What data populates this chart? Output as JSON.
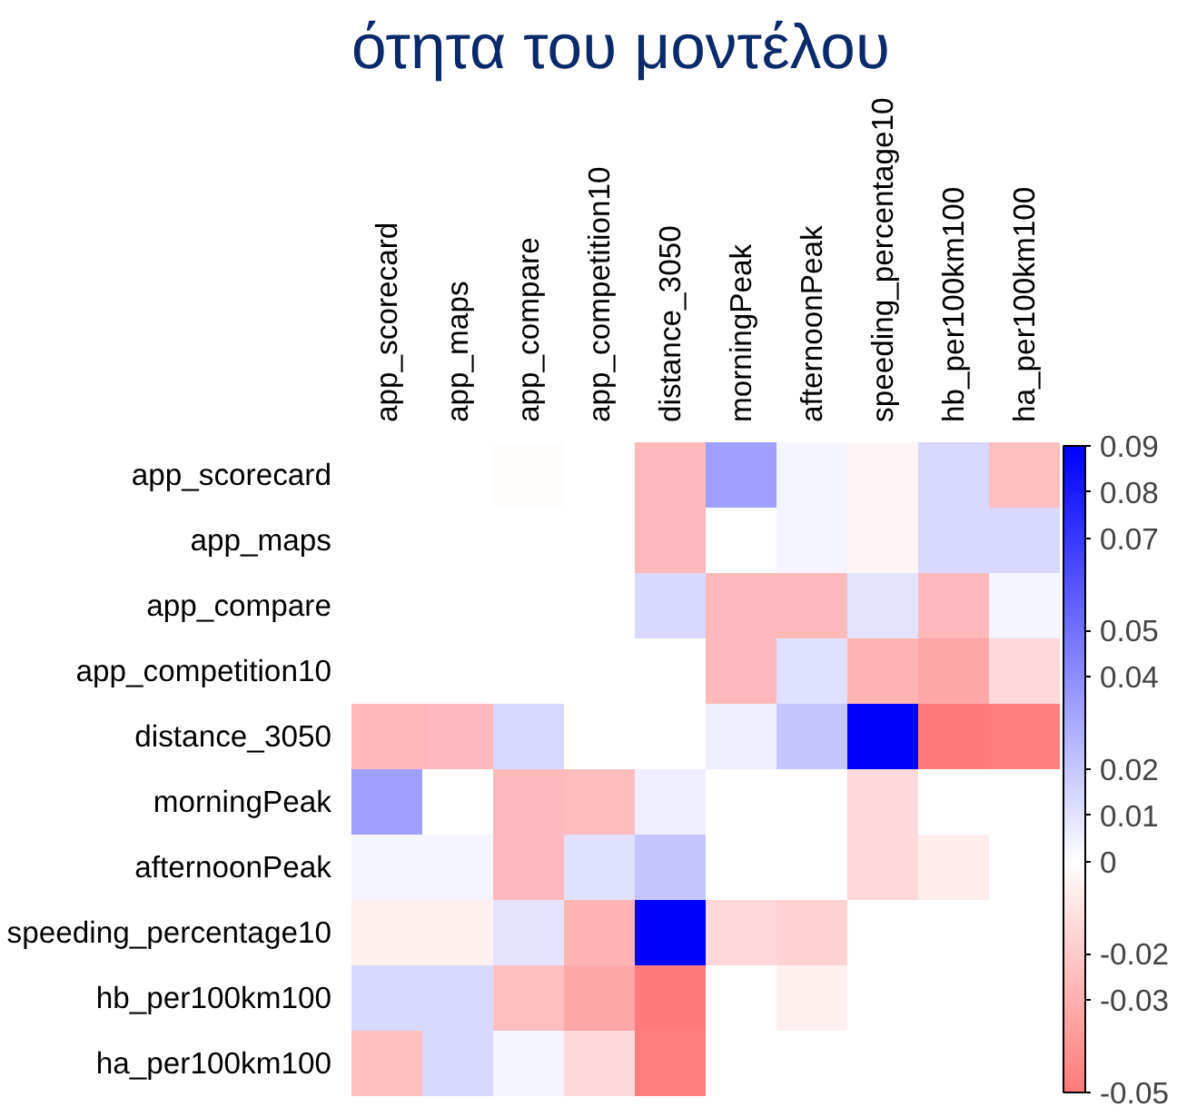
{
  "chart_data": {
    "type": "heatmap",
    "title": "ότητα του μοντέλου",
    "categories": [
      "app_scorecard",
      "app_maps",
      "app_compare",
      "app_competition10",
      "distance_3050",
      "morningPeak",
      "afternoonPeak",
      "speeding_percentage10",
      "hb_per100km100",
      "ha_per100km100"
    ],
    "y_categories": [
      "app_scorecard",
      "app_maps",
      "app_compare",
      "app_competition10",
      "distance_3050",
      "morningPeak",
      "afternoonPeak",
      "speeding_percentage10",
      "hb_per100km100",
      "ha_per100km100"
    ],
    "cells": [
      [
        0,
        0,
        -0.001,
        0,
        -0.026,
        0.034,
        0.004,
        -0.004,
        0.014,
        -0.024
      ],
      [
        0,
        0,
        0,
        0,
        -0.026,
        0,
        0.004,
        -0.004,
        0.014,
        0.014
      ],
      [
        0,
        0,
        0,
        0,
        0.014,
        -0.026,
        -0.026,
        0.01,
        -0.026,
        0.004
      ],
      [
        0,
        0,
        0,
        0,
        0,
        -0.026,
        0.011,
        -0.028,
        -0.033,
        -0.014
      ],
      [
        -0.027,
        -0.026,
        0.014,
        0,
        0,
        0.006,
        0.02,
        0.09,
        -0.049,
        -0.048
      ],
      [
        0.034,
        0,
        -0.026,
        -0.025,
        0.006,
        0,
        0,
        -0.014,
        0,
        0
      ],
      [
        0.004,
        0.004,
        -0.026,
        0.011,
        0.02,
        0,
        0,
        -0.014,
        -0.007,
        0
      ],
      [
        -0.006,
        -0.006,
        0.01,
        -0.028,
        0.09,
        -0.014,
        -0.017,
        0,
        0,
        0
      ],
      [
        0.014,
        0.014,
        -0.024,
        -0.033,
        -0.049,
        0,
        -0.006,
        0,
        0,
        0
      ],
      [
        -0.024,
        0.014,
        0.004,
        -0.014,
        -0.048,
        0,
        0,
        0,
        0,
        0
      ]
    ],
    "clim": [
      -0.05,
      0.09
    ],
    "cticks": [
      -0.05,
      -0.03,
      -0.02,
      0,
      0.01,
      0.02,
      0.04,
      0.05,
      0.07,
      0.08,
      0.09
    ]
  }
}
